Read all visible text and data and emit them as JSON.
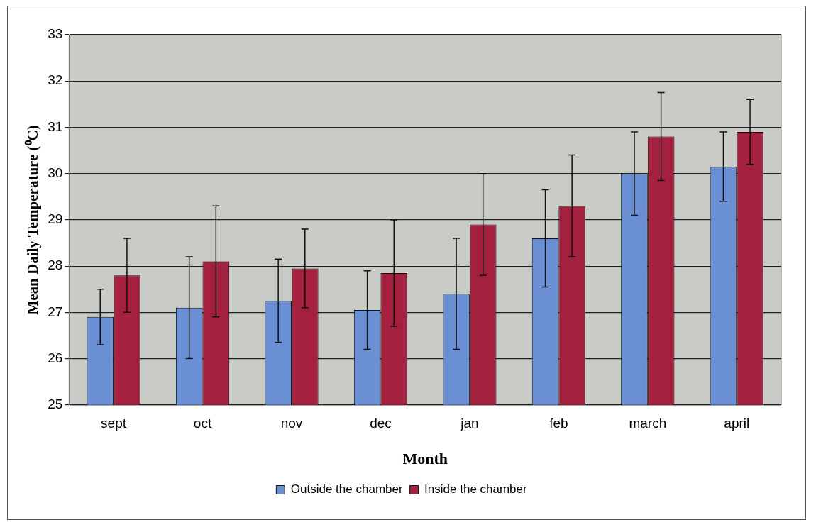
{
  "chart_data": {
    "type": "bar",
    "xlabel": "Month",
    "ylabel": "Mean Daily Temperature (⁰C)",
    "categories": [
      "sept",
      "oct",
      "nov",
      "dec",
      "jan",
      "feb",
      "march",
      "april"
    ],
    "series": [
      {
        "name": "Outside the chamber",
        "color": "#6a8fd4",
        "values": [
          26.9,
          27.1,
          27.25,
          27.05,
          27.4,
          28.6,
          30.0,
          30.15
        ],
        "errors": [
          0.6,
          1.1,
          0.9,
          0.85,
          1.2,
          1.05,
          0.9,
          0.75
        ]
      },
      {
        "name": "Inside the chamber",
        "color": "#a3203f",
        "values": [
          27.8,
          28.1,
          27.95,
          27.85,
          28.9,
          29.3,
          30.8,
          30.9
        ],
        "errors": [
          0.8,
          1.2,
          0.85,
          1.15,
          1.1,
          1.1,
          0.95,
          0.7
        ]
      }
    ],
    "ylim": [
      25,
      33
    ],
    "yticks": [
      25,
      26,
      27,
      28,
      29,
      30,
      31,
      32,
      33
    ],
    "grid": "y",
    "legend": "bottom"
  }
}
